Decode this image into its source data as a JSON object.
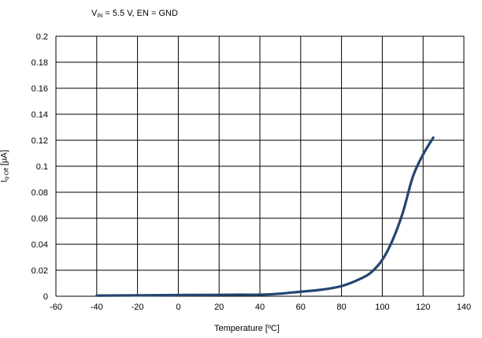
{
  "annotation": {
    "main": "V",
    "sub": "IN",
    "rest": " = 5.5 V, EN = GND"
  },
  "ylabel": {
    "main": "I",
    "sub": "q-Off",
    "rest": "  [µA]"
  },
  "chart_data": {
    "type": "line",
    "title": "",
    "xlabel": "Temperature [ºC]",
    "ylabel": "Iq-Off [µA]",
    "xlim": [
      -60,
      140
    ],
    "ylim": [
      0,
      0.2
    ],
    "x_ticks": [
      "-60",
      "-40",
      "-20",
      "0",
      "20",
      "40",
      "60",
      "80",
      "100",
      "120",
      "140"
    ],
    "y_ticks": [
      "0",
      "0.02",
      "0.04",
      "0.06",
      "0.08",
      "0.1",
      "0.12",
      "0.14",
      "0.16",
      "0.18",
      "0.2"
    ],
    "grid": true,
    "line_color": "#24456f",
    "series": [
      {
        "x": [
          -40,
          -20,
          0,
          20,
          30,
          40,
          50,
          60,
          70,
          80,
          90,
          95,
          100,
          105,
          110,
          115,
          120,
          125
        ],
        "y": [
          0.0005,
          0.0007,
          0.0009,
          0.0011,
          0.0012,
          0.0012,
          0.002,
          0.0035,
          0.005,
          0.0078,
          0.014,
          0.019,
          0.028,
          0.043,
          0.064,
          0.092,
          0.109,
          0.122
        ]
      }
    ]
  }
}
